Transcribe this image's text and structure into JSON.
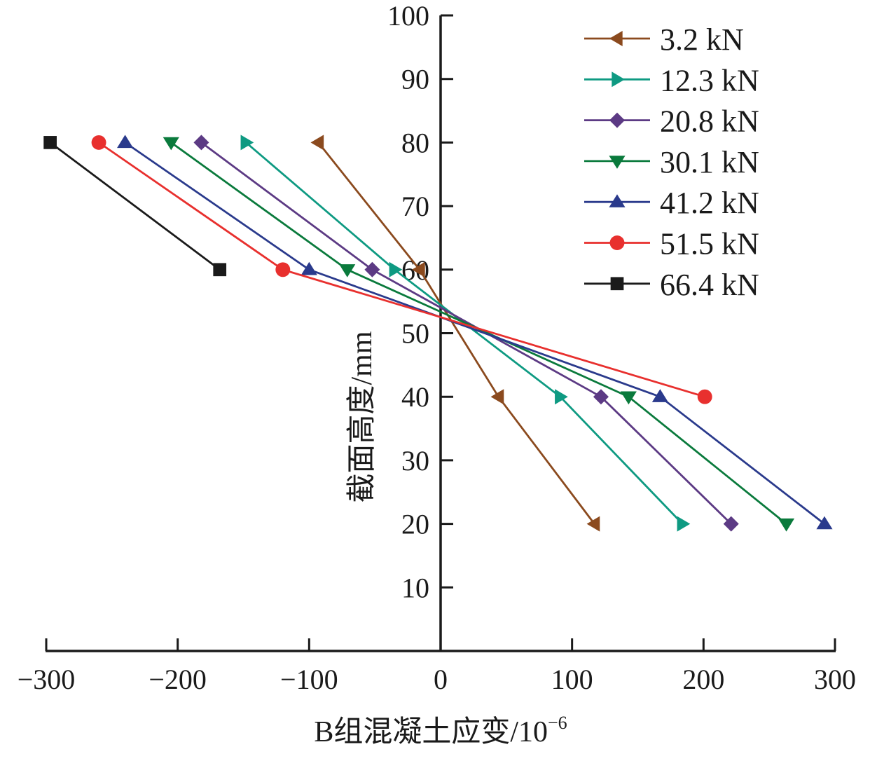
{
  "chart_data": {
    "type": "line",
    "title": "",
    "xlabel": "B组混凝土应变/10",
    "xlabel_superscript": "−6",
    "ylabel": "截面高度/mm",
    "xlim": [
      -300,
      300
    ],
    "ylim": [
      0,
      100
    ],
    "x_ticks": [
      -300,
      -200,
      -100,
      0,
      100,
      200,
      300
    ],
    "x_tick_labels": [
      "−300",
      "−200",
      "−100",
      "0",
      "100",
      "200",
      "300"
    ],
    "y_ticks": [
      10,
      20,
      30,
      40,
      50,
      60,
      70,
      80,
      90,
      100
    ],
    "y_tick_labels": [
      "10",
      "20",
      "30",
      "40",
      "50",
      "60",
      "70",
      "80",
      "90",
      "100"
    ],
    "grid": false,
    "legend_position": "top-right",
    "series": [
      {
        "name": "3.2 kN",
        "color": "#8B4A1E",
        "marker": "triangle-left",
        "points": [
          [
            -93,
            80
          ],
          [
            -16,
            60
          ],
          [
            44,
            40
          ],
          [
            117,
            20
          ]
        ]
      },
      {
        "name": "12.3 kN",
        "color": "#0E9A82",
        "marker": "triangle-right",
        "points": [
          [
            -148,
            80
          ],
          [
            -35,
            60
          ],
          [
            91,
            40
          ],
          [
            184,
            20
          ]
        ]
      },
      {
        "name": "20.8 kN",
        "color": "#5C3A84",
        "marker": "diamond",
        "points": [
          [
            -182,
            80
          ],
          [
            -52,
            60
          ],
          [
            122,
            40
          ],
          [
            221,
            20
          ]
        ]
      },
      {
        "name": "30.1 kN",
        "color": "#0A7A3C",
        "marker": "triangle-down",
        "points": [
          [
            -205,
            80
          ],
          [
            -71,
            60
          ],
          [
            143,
            40
          ],
          [
            263,
            20
          ]
        ]
      },
      {
        "name": "41.2 kN",
        "color": "#2A3A8C",
        "marker": "triangle-up",
        "points": [
          [
            -240,
            80
          ],
          [
            -100,
            60
          ],
          [
            167,
            40
          ],
          [
            292,
            20
          ]
        ]
      },
      {
        "name": "51.5 kN",
        "color": "#E8302E",
        "marker": "circle",
        "points": [
          [
            -260,
            80
          ],
          [
            -120,
            60
          ],
          [
            201,
            40
          ]
        ]
      },
      {
        "name": "66.4 kN",
        "color": "#1A1A1A",
        "marker": "square",
        "points": [
          [
            -297,
            80
          ],
          [
            -168,
            60
          ]
        ]
      }
    ]
  }
}
